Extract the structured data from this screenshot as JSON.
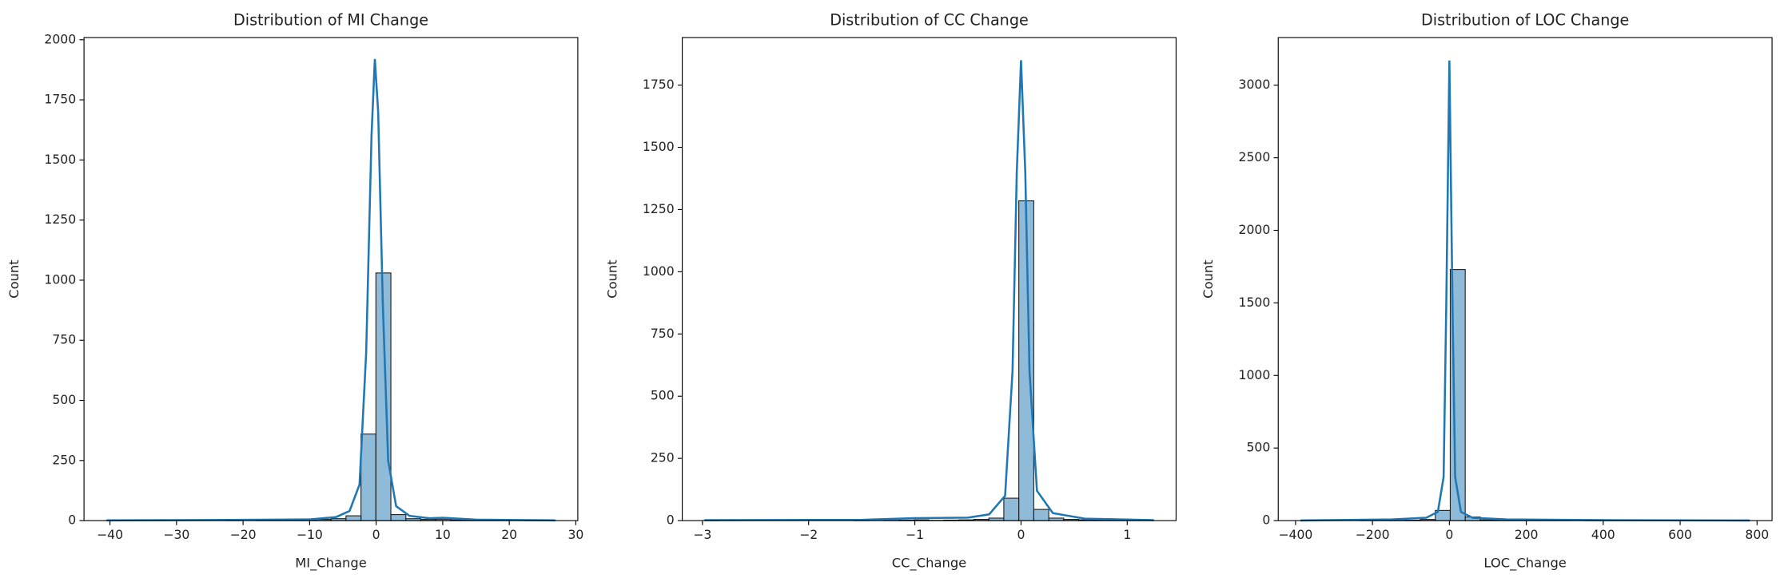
{
  "chart_data": [
    {
      "type": "histogram",
      "title": "Distribution of MI Change",
      "xlabel": "MI_Change",
      "ylabel": "Count",
      "color": "#1f77b4",
      "bins": [
        -40.5,
        -38.25,
        -36.0,
        -33.76,
        -31.51,
        -29.26,
        -27.01,
        -24.76,
        -22.52,
        -20.27,
        -18.02,
        -15.77,
        -13.52,
        -11.28,
        -9.03,
        -6.78,
        -4.53,
        -2.28,
        -0.04,
        2.21,
        4.46,
        6.71,
        8.96,
        11.2,
        13.45,
        15.7,
        17.95,
        20.2,
        22.44,
        24.69,
        26.94
      ],
      "values": [
        1,
        0,
        0,
        0,
        0,
        0,
        0,
        0,
        1,
        0,
        1,
        1,
        2,
        3,
        5,
        8,
        20,
        360,
        1030,
        25,
        8,
        5,
        6,
        3,
        2,
        2,
        1,
        0,
        1,
        1
      ],
      "kde": {
        "x": [
          -40.5,
          -20,
          -10,
          -6,
          -4,
          -2.5,
          -1.5,
          -0.7,
          -0.2,
          0.3,
          1,
          1.8,
          3,
          5,
          8,
          10,
          15,
          26.9
        ],
        "values": [
          1,
          3,
          5,
          15,
          40,
          150,
          700,
          1600,
          1920,
          1700,
          900,
          250,
          60,
          20,
          10,
          12,
          4,
          1
        ]
      },
      "xlim": [
        -43.9,
        30.3
      ],
      "ylim": [
        0,
        2009
      ],
      "xticks": [
        {
          "value": -40,
          "label": "−40"
        },
        {
          "value": -30,
          "label": "−30"
        },
        {
          "value": -20,
          "label": "−20"
        },
        {
          "value": -10,
          "label": "−10"
        },
        0,
        10,
        20,
        30
      ],
      "yticks": [
        0,
        250,
        500,
        750,
        1000,
        1250,
        1500,
        1750,
        2000
      ]
    },
    {
      "type": "histogram",
      "title": "Distribution of CC Change",
      "xlabel": "CC_Change",
      "ylabel": "Count",
      "color": "#1f77b4",
      "bins": [
        -2.98,
        -2.839,
        -2.698,
        -2.557,
        -2.416,
        -2.276,
        -2.135,
        -1.994,
        -1.853,
        -1.712,
        -1.571,
        -1.43,
        -1.289,
        -1.148,
        -1.007,
        -0.867,
        -0.726,
        -0.585,
        -0.444,
        -0.303,
        -0.162,
        -0.021,
        0.12,
        0.261,
        0.402,
        0.543,
        0.685,
        0.826,
        0.967,
        1.108,
        1.249
      ],
      "values": [
        2,
        0,
        0,
        0,
        0,
        0,
        0,
        0,
        0,
        0,
        1,
        0,
        1,
        2,
        3,
        1,
        2,
        3,
        5,
        10,
        90,
        1285,
        45,
        10,
        5,
        3,
        2,
        1,
        1,
        1
      ],
      "kde": {
        "x": [
          -2.98,
          -1.5,
          -1,
          -0.5,
          -0.3,
          -0.15,
          -0.08,
          -0.04,
          0,
          0.04,
          0.08,
          0.15,
          0.3,
          0.6,
          1.25
        ],
        "values": [
          2,
          3,
          10,
          12,
          25,
          100,
          600,
          1400,
          1850,
          1400,
          600,
          120,
          30,
          8,
          2
        ]
      },
      "xlim": [
        -3.19,
        1.46
      ],
      "ylim": [
        0,
        1941
      ],
      "xticks": [
        {
          "value": -3,
          "label": "−3"
        },
        {
          "value": -2,
          "label": "−2"
        },
        {
          "value": -1,
          "label": "−1"
        },
        0,
        1
      ],
      "yticks": [
        0,
        250,
        500,
        750,
        1000,
        1250,
        1500,
        1750
      ]
    },
    {
      "type": "histogram",
      "title": "Distribution of LOC Change",
      "xlabel": "LOC_Change",
      "ylabel": "Count",
      "color": "#1f77b4",
      "bins": [
        -387,
        -348.07,
        -309.14,
        -270.21,
        -231.28,
        -192.35,
        -153.42,
        -114.49,
        -75.56,
        -36.63,
        2.3,
        41.23,
        80.16,
        119.09,
        158.02,
        196.95,
        235.88,
        274.81,
        313.74,
        352.67,
        391.6,
        430.53,
        469.46,
        508.39,
        547.32,
        586.25,
        625.18,
        664.11,
        703.04,
        741.97,
        780.9
      ],
      "values": [
        1,
        0,
        0,
        0,
        1,
        1,
        2,
        3,
        8,
        70,
        1730,
        25,
        5,
        3,
        2,
        1,
        1,
        1,
        0,
        1,
        0,
        0,
        0,
        0,
        1,
        0,
        0,
        0,
        0,
        1
      ],
      "kde": {
        "x": [
          -387,
          -150,
          -60,
          -30,
          -15,
          -8,
          0,
          8,
          15,
          30,
          60,
          150,
          400,
          781
        ],
        "values": [
          1,
          8,
          20,
          60,
          300,
          1500,
          3170,
          1500,
          300,
          60,
          20,
          8,
          3,
          1
        ]
      },
      "xlim": [
        -445,
        839
      ],
      "ylim": [
        0,
        3328
      ],
      "xticks": [
        {
          "value": -400,
          "label": "−400"
        },
        {
          "value": -200,
          "label": "−200"
        },
        0,
        200,
        400,
        600,
        800
      ],
      "yticks": [
        0,
        500,
        1000,
        1500,
        2000,
        2500,
        3000
      ]
    }
  ]
}
